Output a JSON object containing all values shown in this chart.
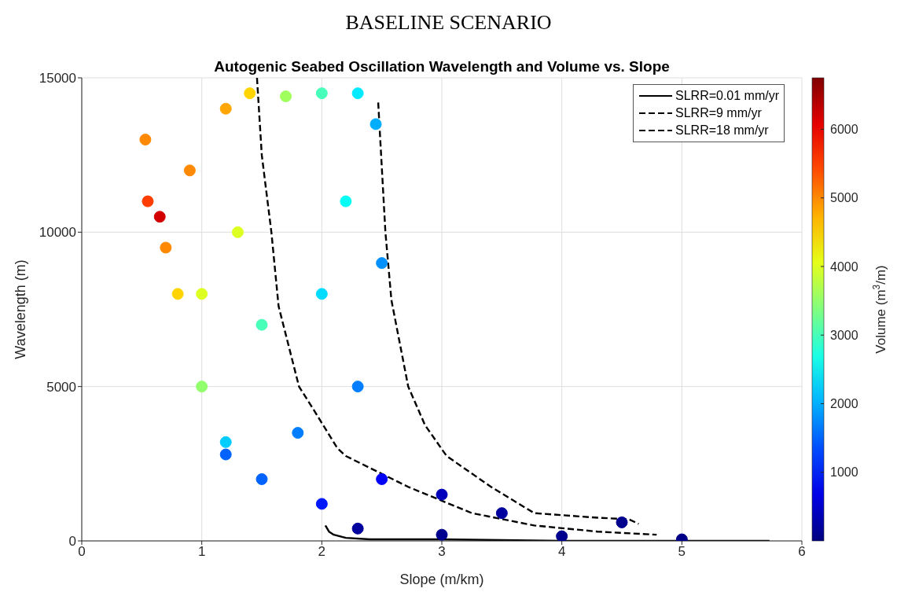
{
  "chart_data": {
    "type": "line",
    "title": "BASELINE SCENARIO",
    "subtitle": "Autogenic Seabed Oscillation Wavelength and Volume vs. Slope",
    "xlabel": "Slope (m/km)",
    "ylabel": "Wavelength (m)",
    "clabel": "Volume (m$^{3}$/m)",
    "xlim": [
      0,
      6
    ],
    "xticks": [
      0,
      1,
      2,
      3,
      4,
      5,
      6
    ],
    "ylim": [
      0,
      15000
    ],
    "yticks": [
      0,
      5000,
      10000,
      15000
    ],
    "clim": [
      0,
      6750
    ],
    "cticks": [
      1000,
      2000,
      3000,
      4000,
      5000,
      6000
    ],
    "grid": true,
    "legend": "top right",
    "marker": "none",
    "series": [
      {
        "type": "scatter",
        "marker": "circle",
        "x": [
          0.53,
          0.55,
          0.65,
          0.8,
          1.0,
          1.2,
          1.5,
          2.0,
          2.3,
          3.0,
          4.0,
          5.0,
          0.9,
          1.2,
          1.4,
          1.7,
          2.0,
          2.3,
          2.45,
          1.3,
          1.5,
          2.0,
          2.3,
          2.5,
          1.8,
          2.5,
          3.0,
          3.5,
          4.5,
          1.2,
          1.0,
          2.2,
          0.7
        ],
        "values": [
          13000,
          11000,
          10500,
          8000,
          5000,
          3200,
          2000,
          1200,
          400,
          200,
          150,
          50,
          12000,
          14000,
          14500,
          14400,
          14500,
          14500,
          13500,
          10000,
          7000,
          8000,
          5000,
          9000,
          3500,
          2000,
          1500,
          900,
          600,
          2800,
          8000,
          11000,
          9500
        ],
        "cvalues": [
          5000,
          5500,
          6200,
          4500,
          3500,
          2200,
          1500,
          1000,
          200,
          100,
          100,
          50,
          5000,
          4800,
          4500,
          3600,
          3000,
          2400,
          2000,
          4000,
          3000,
          2300,
          1700,
          1800,
          1700,
          800,
          400,
          200,
          100,
          1500,
          4000,
          2600,
          5000
        ],
        "colors": [
          "#ff8900",
          "#ff3d00",
          "#d20000",
          "#ffd400",
          "#92ff6c",
          "#00cdff",
          "#0063ff",
          "#0018ff",
          "#00009e",
          "#00008e",
          "#00008e",
          "#000087",
          "#ff8900",
          "#ffa700",
          "#ffd400",
          "#a1ff5d",
          "#47ffb8",
          "#00ebff",
          "#00aeff",
          "#ddff21",
          "#47ffb8",
          "#00dcff",
          "#007eff",
          "#0091ff",
          "#007eff",
          "#0000f8",
          "#0000bc",
          "#00009e",
          "#00008e",
          "#0063ff",
          "#ddff21",
          "#00fff5",
          "#ff8900"
        ]
      },
      {
        "name": "SLRR=0.01 mm/yr",
        "color": "#000000",
        "line_style": "solid",
        "x": [
          2.03,
          2.06,
          2.1,
          2.2,
          2.4,
          3.0,
          4.0,
          5.0,
          5.73
        ],
        "values": [
          500,
          300,
          200,
          100,
          50,
          50,
          0,
          0,
          0
        ]
      },
      {
        "name": "SLRR=9 mm/yr",
        "color": "#000000",
        "line_style": "dashed",
        "x": [
          1.46,
          1.5,
          1.58,
          1.64,
          1.81,
          1.94,
          2.13,
          2.2,
          2.72,
          3.25,
          3.77,
          4.3,
          4.79
        ],
        "values": [
          15000,
          12500,
          10000,
          7600,
          5000,
          4200,
          3000,
          2750,
          1750,
          900,
          500,
          300,
          200
        ]
      },
      {
        "name": "SLRR=18 mm/yr",
        "color": "#000000",
        "line_style": "dashed",
        "x": [
          2.47,
          2.53,
          2.58,
          2.72,
          2.86,
          3.04,
          3.41,
          3.77,
          4.3,
          4.56,
          4.64
        ],
        "values": [
          14200,
          10000,
          7800,
          5000,
          3750,
          2750,
          1750,
          900,
          750,
          700,
          550
        ]
      }
    ]
  }
}
